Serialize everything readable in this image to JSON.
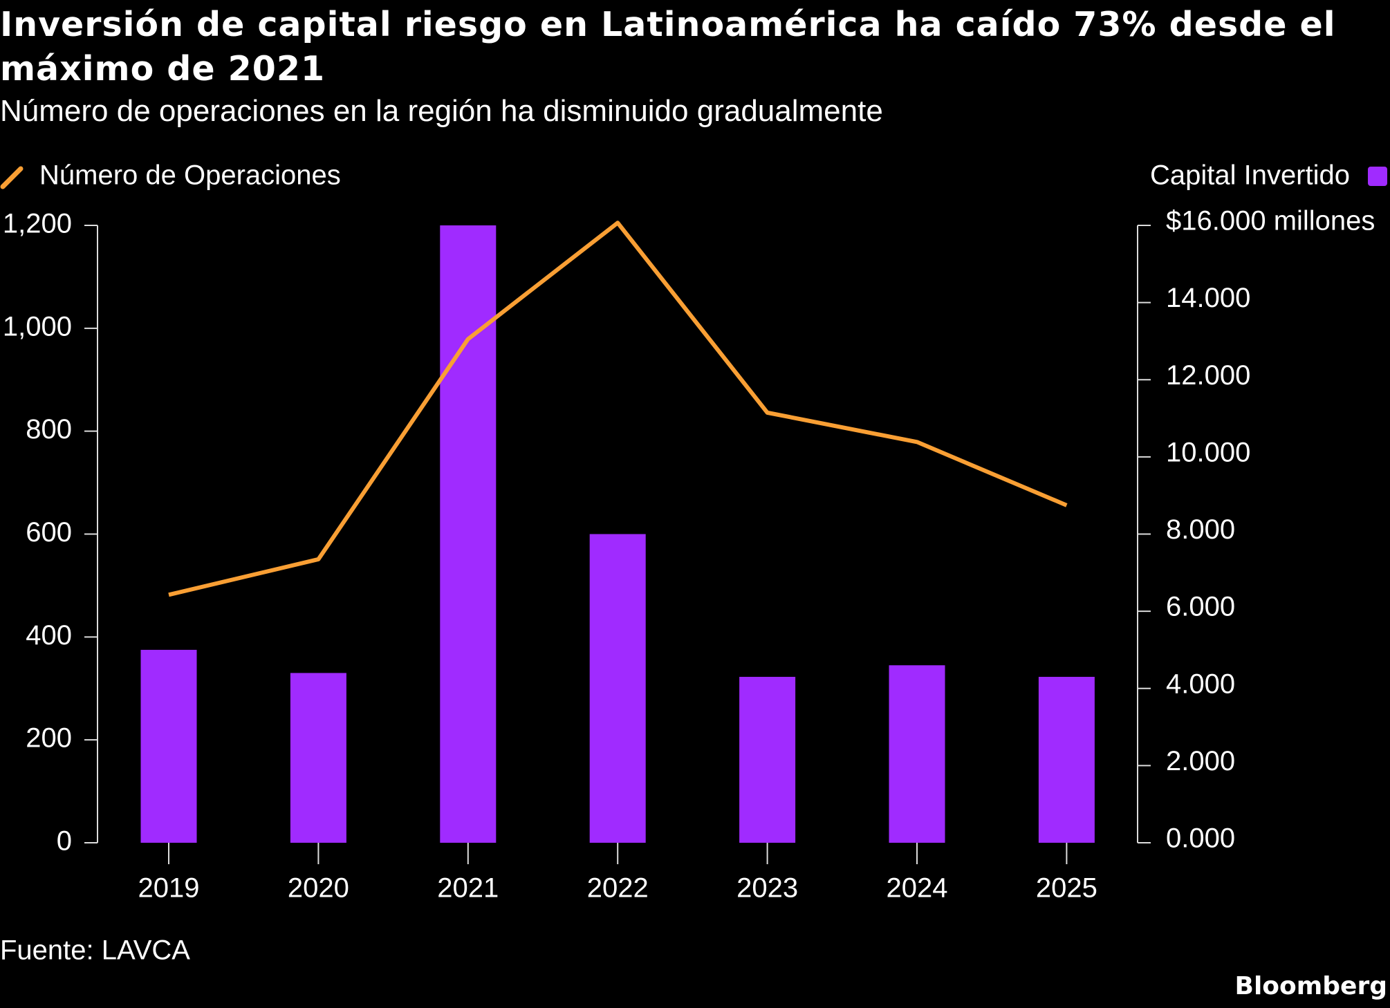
{
  "chart_data": {
    "type": "bar",
    "title": "Inversión de capital riesgo en Latinoamérica ha caído 73% desde el máximo de 2021",
    "subtitle": "Número de operaciones en la región ha disminuido gradualmente",
    "categories": [
      "2019",
      "2020",
      "2021",
      "2022",
      "2023",
      "2024",
      "2025"
    ],
    "series": [
      {
        "name": "Capital Invertido",
        "type": "bar",
        "axis": "y2",
        "color": "#a02bff",
        "values": [
          5000,
          4400,
          16000,
          8000,
          4300,
          4600,
          4300
        ]
      },
      {
        "name": "Número de Operaciones",
        "type": "line",
        "axis": "y",
        "color": "#f99f34",
        "values": [
          482,
          551,
          979,
          1205,
          836,
          779,
          656
        ]
      }
    ],
    "ylim": [
      0,
      1200
    ],
    "yticks": [
      0,
      200,
      400,
      600,
      800,
      {
        "value": 1000,
        "label": "1,000"
      },
      {
        "value": 1200,
        "label": "1,200"
      }
    ],
    "y2lim": [
      0,
      16000
    ],
    "y2ticks": [
      {
        "value": 0,
        "label": "0.000"
      },
      {
        "value": 2000,
        "label": "2.000"
      },
      {
        "value": 4000,
        "label": "4.000"
      },
      {
        "value": 6000,
        "label": "6.000"
      },
      {
        "value": 8000,
        "label": "8.000"
      },
      {
        "value": 10000,
        "label": "10.000"
      },
      {
        "value": 12000,
        "label": "12.000"
      },
      {
        "value": 14000,
        "label": "14.000"
      },
      {
        "value": 16000,
        "label": "$16.000 millones"
      }
    ],
    "source": "Fuente: LAVCA",
    "brand": "Bloomberg"
  }
}
